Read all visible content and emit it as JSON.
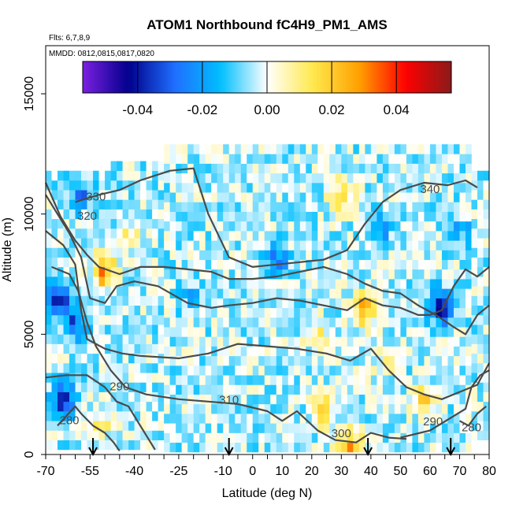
{
  "chart_data": {
    "type": "heatmap",
    "title": "ATOM1 Northbound fC4H9_PM1_AMS",
    "annotations": [
      "Flts: 6,7,8,9",
      "MMDD: 0812,0815,0817,0820"
    ],
    "xlabel": "Latitude (deg N)",
    "ylabel": "Altitude (m)",
    "xlim": [
      -70,
      80
    ],
    "ylim": [
      0,
      17000
    ],
    "x_ticks": [
      "-70",
      "-55",
      "-40",
      "-25",
      "-10",
      "0",
      "10",
      "20",
      "30",
      "40",
      "50",
      "60",
      "70",
      "80"
    ],
    "x_tick_values": [
      -70,
      -55,
      -40,
      -25,
      -10,
      0,
      10,
      20,
      30,
      40,
      50,
      60,
      70,
      80
    ],
    "x_tick_labels": [
      "-70",
      "-55",
      "-40",
      "-25",
      "-10",
      "0",
      "10",
      "20",
      "30",
      "40",
      "50",
      "60",
      "70",
      "80"
    ],
    "x_minor_step": 5,
    "y_ticks": [
      "0",
      "5000",
      "10000",
      "15000"
    ],
    "y_tick_values": [
      0,
      5000,
      10000,
      15000
    ],
    "y_tick_labels": [
      "0",
      "5000",
      "10000",
      "15000"
    ],
    "colorbar": {
      "range": [
        -0.057,
        0.057
      ],
      "tick_values": [
        -0.04,
        -0.02,
        0.0,
        0.02,
        0.04
      ],
      "tick_labels": [
        "-0.04",
        "-0.02",
        "0.00",
        "0.02",
        "0.04"
      ],
      "colors": [
        "#7b1fe0",
        "#00008b",
        "#1f6fff",
        "#00bfff",
        "#ffffff",
        "#ffe94d",
        "#ffa000",
        "#ff0000",
        "#8b1a1a"
      ]
    },
    "cell_size": {
      "lat": 2,
      "alt_m": 400
    },
    "coverage": [
      {
        "lat": [
          -70,
          -48
        ],
        "alt": [
          200,
          11500
        ]
      },
      {
        "lat": [
          -48,
          -30
        ],
        "alt": [
          200,
          12000
        ]
      },
      {
        "lat": [
          -30,
          74
        ],
        "alt": [
          100,
          12800
        ]
      },
      {
        "lat": [
          74,
          79
        ],
        "alt": [
          600,
          11600
        ]
      }
    ],
    "anomalies": [
      {
        "lat": -66,
        "alt": 6500,
        "value": -0.035
      },
      {
        "lat": -64,
        "alt": 2300,
        "value": -0.032
      },
      {
        "lat": -60,
        "alt": 5500,
        "value": -0.025
      },
      {
        "lat": -52,
        "alt": 1200,
        "value": 0.015
      },
      {
        "lat": -50,
        "alt": 7600,
        "value": 0.032
      },
      {
        "lat": -58,
        "alt": 10800,
        "value": -0.02
      },
      {
        "lat": -42,
        "alt": 9000,
        "value": 0.012
      },
      {
        "lat": -20,
        "alt": 6500,
        "value": -0.012
      },
      {
        "lat": 8,
        "alt": 8000,
        "value": -0.02
      },
      {
        "lat": 22,
        "alt": 5000,
        "value": 0.015
      },
      {
        "lat": 24,
        "alt": 1800,
        "value": 0.02
      },
      {
        "lat": 30,
        "alt": 10800,
        "value": 0.02
      },
      {
        "lat": 33,
        "alt": 300,
        "value": 0.028
      },
      {
        "lat": 38,
        "alt": 6000,
        "value": 0.03
      },
      {
        "lat": 45,
        "alt": 4000,
        "value": 0.012
      },
      {
        "lat": 64,
        "alt": 6200,
        "value": -0.038
      },
      {
        "lat": 58,
        "alt": 2300,
        "value": 0.018
      },
      {
        "lat": 44,
        "alt": 9500,
        "value": -0.015
      },
      {
        "lat": 70,
        "alt": 9300,
        "value": -0.012
      }
    ],
    "contours": [
      {
        "label": "280",
        "points": [
          [
            -66,
            1200
          ],
          [
            -60,
            2000
          ],
          [
            -58,
            1700
          ],
          [
            -54,
            1200
          ],
          [
            -50,
            900
          ],
          [
            -47,
            500
          ],
          [
            -45,
            150
          ]
        ]
      },
      {
        "label": "290",
        "points": [
          [
            -70,
            3200
          ],
          [
            -63,
            3300
          ],
          [
            -56,
            3300
          ],
          [
            -50,
            2800
          ],
          [
            -46,
            2200
          ],
          [
            -42,
            2000
          ],
          [
            -38,
            1200
          ],
          [
            -33,
            200
          ]
        ]
      },
      {
        "label": "310",
        "points": [
          [
            -68,
            7800
          ],
          [
            -62,
            7500
          ],
          [
            -59,
            6800
          ],
          [
            -56,
            5500
          ],
          [
            -53,
            4500
          ],
          [
            -48,
            3500
          ],
          [
            -43,
            2800
          ],
          [
            -36,
            2500
          ],
          [
            -25,
            2300
          ],
          [
            -15,
            2200
          ],
          [
            -5,
            2100
          ],
          [
            5,
            1800
          ],
          [
            10,
            1400
          ],
          [
            15,
            1800
          ],
          [
            22,
            1000
          ],
          [
            28,
            600
          ],
          [
            35,
            500
          ],
          [
            40,
            900
          ],
          [
            46,
            700
          ],
          [
            52,
            650
          ]
        ]
      },
      {
        "label": "290",
        "points": [
          [
            50,
            700
          ],
          [
            60,
            1000
          ],
          [
            68,
            1600
          ],
          [
            72,
            1900
          ],
          [
            74,
            2800
          ],
          [
            77,
            3300
          ],
          [
            80,
            3500
          ]
        ]
      },
      {
        "label": "280",
        "points": [
          [
            70,
            1400
          ],
          [
            73,
            1200
          ],
          [
            76,
            1700
          ],
          [
            79,
            2000
          ]
        ]
      },
      {
        "label": "300",
        "points": [
          [
            -70,
            9300
          ],
          [
            -64,
            8700
          ],
          [
            -60,
            7900
          ],
          [
            -58,
            6000
          ],
          [
            -56,
            4800
          ],
          [
            -50,
            4400
          ],
          [
            -44,
            4200
          ],
          [
            -38,
            4100
          ],
          [
            -25,
            4000
          ],
          [
            -15,
            4200
          ],
          [
            -5,
            4600
          ],
          [
            5,
            4500
          ],
          [
            15,
            4400
          ],
          [
            25,
            4200
          ],
          [
            33,
            3900
          ],
          [
            40,
            4400
          ],
          [
            46,
            3500
          ],
          [
            52,
            2800
          ],
          [
            58,
            2500
          ],
          [
            64,
            2300
          ],
          [
            70,
            2600
          ],
          [
            76,
            2900
          ],
          [
            80,
            3800
          ]
        ]
      },
      {
        "label": "320",
        "points": [
          [
            -70,
            10800
          ],
          [
            -66,
            10000
          ],
          [
            -62,
            9200
          ],
          [
            -58,
            8200
          ],
          [
            -55,
            6500
          ],
          [
            -50,
            6300
          ],
          [
            -46,
            7000
          ],
          [
            -40,
            7200
          ],
          [
            -32,
            7000
          ],
          [
            -22,
            6300
          ],
          [
            -14,
            6100
          ],
          [
            -8,
            6200
          ],
          [
            0,
            6300
          ],
          [
            8,
            6500
          ],
          [
            16,
            6400
          ],
          [
            24,
            6200
          ],
          [
            32,
            6000
          ],
          [
            38,
            6500
          ],
          [
            44,
            6200
          ],
          [
            50,
            6100
          ],
          [
            56,
            5800
          ],
          [
            60,
            5800
          ],
          [
            64,
            6000
          ],
          [
            68,
            7000
          ],
          [
            72,
            7700
          ],
          [
            76,
            7400
          ],
          [
            80,
            7800
          ]
        ]
      },
      {
        "label": "330",
        "points": [
          [
            -70,
            11300
          ],
          [
            -65,
            9900
          ],
          [
            -60,
            8900
          ],
          [
            -56,
            8300
          ],
          [
            -52,
            7800
          ],
          [
            -45,
            7500
          ],
          [
            -38,
            7800
          ],
          [
            -30,
            7800
          ],
          [
            -22,
            7700
          ],
          [
            -14,
            7600
          ],
          [
            -8,
            7300
          ],
          [
            0,
            7300
          ],
          [
            8,
            7400
          ],
          [
            16,
            7600
          ],
          [
            24,
            7800
          ],
          [
            32,
            7500
          ],
          [
            38,
            7100
          ],
          [
            44,
            6800
          ],
          [
            50,
            6700
          ],
          [
            56,
            6200
          ],
          [
            62,
            5800
          ],
          [
            68,
            5300
          ],
          [
            72,
            5000
          ],
          [
            76,
            5800
          ],
          [
            80,
            6200
          ]
        ]
      },
      {
        "label": "340",
        "points": [
          [
            -60,
            10500
          ],
          [
            -52,
            10800
          ],
          [
            -45,
            11000
          ],
          [
            -38,
            11400
          ],
          [
            -28,
            11800
          ],
          [
            -20,
            11900
          ],
          [
            -15,
            10000
          ],
          [
            -8,
            8200
          ],
          [
            0,
            7800
          ],
          [
            8,
            7900
          ],
          [
            16,
            8000
          ],
          [
            24,
            8100
          ],
          [
            32,
            8500
          ],
          [
            38,
            9600
          ],
          [
            44,
            10500
          ],
          [
            50,
            11000
          ],
          [
            58,
            11300
          ],
          [
            66,
            11200
          ],
          [
            72,
            11400
          ],
          [
            76,
            11100
          ]
        ]
      }
    ],
    "contour_labels": [
      {
        "text": "330",
        "lat": -53,
        "alt": 10700
      },
      {
        "text": "320",
        "lat": -56,
        "alt": 9900
      },
      {
        "text": "340",
        "lat": 60,
        "alt": 11000
      },
      {
        "text": "290",
        "lat": -45,
        "alt": 2800
      },
      {
        "text": "280",
        "lat": -62,
        "alt": 1400
      },
      {
        "text": "310",
        "lat": -8,
        "alt": 2250
      },
      {
        "text": "300",
        "lat": 30,
        "alt": 850
      },
      {
        "text": "290",
        "lat": 61,
        "alt": 1350
      },
      {
        "text": "280",
        "lat": 74,
        "alt": 1100
      }
    ],
    "arrows": [
      -54,
      -8,
      39,
      67
    ]
  }
}
